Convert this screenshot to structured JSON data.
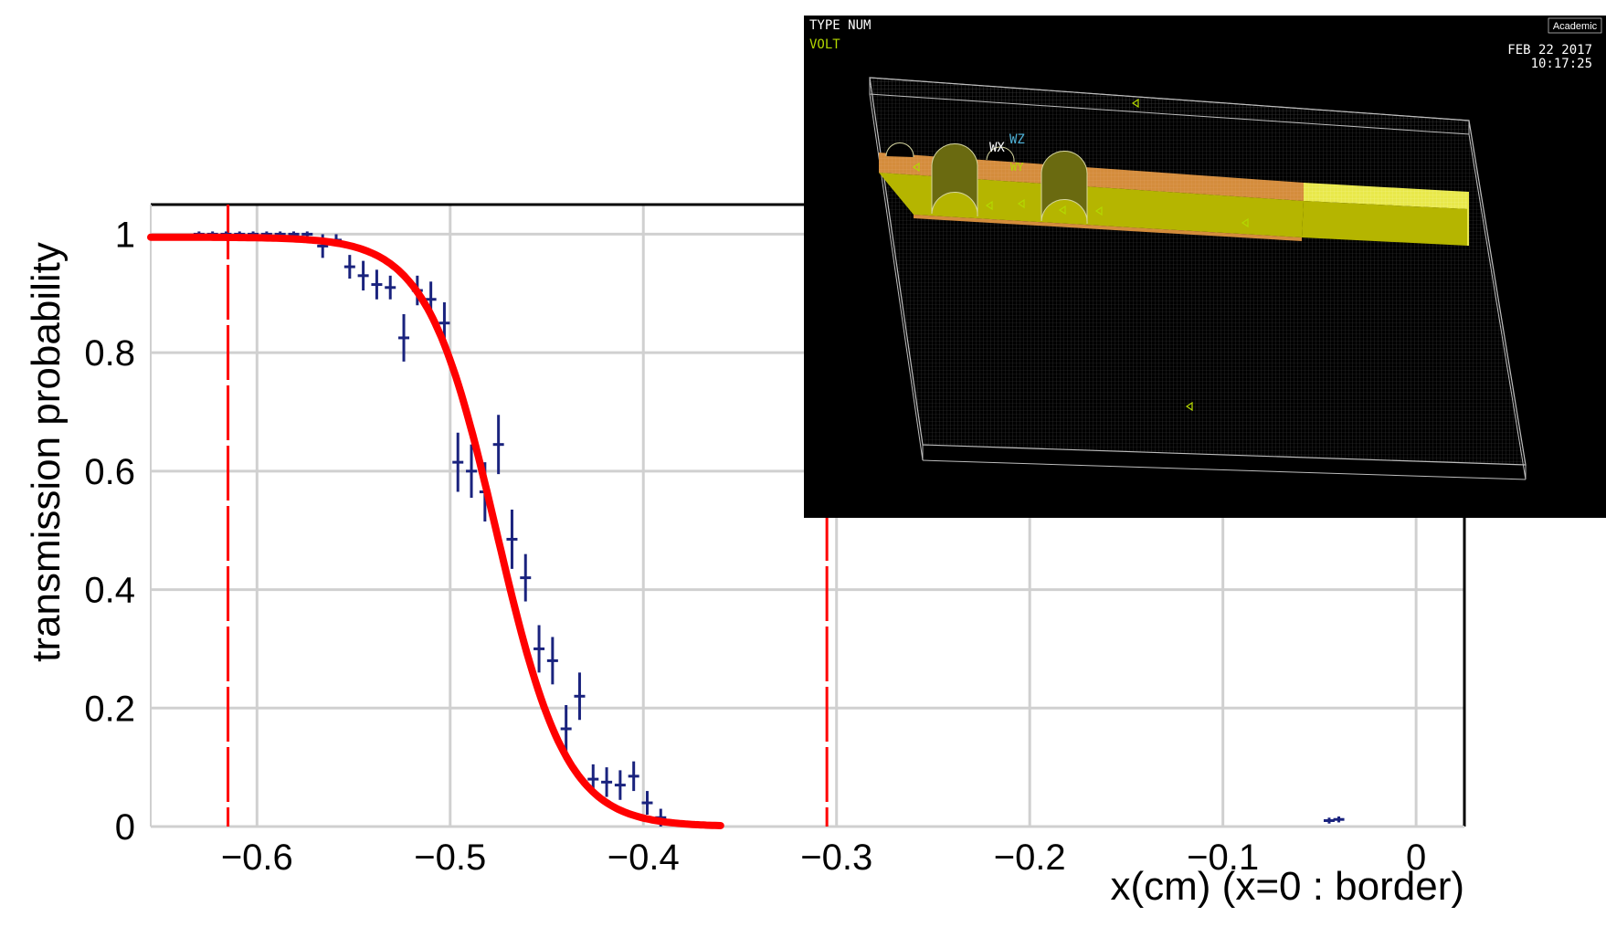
{
  "chart_data": {
    "type": "scatter",
    "title": "",
    "xlabel": "x(cm) (x=0 : border)",
    "ylabel": "transmission probability",
    "xlim": [
      -0.655,
      0.025
    ],
    "ylim": [
      0,
      1.05
    ],
    "xticks": [
      -0.6,
      -0.5,
      -0.4,
      -0.3,
      -0.2,
      -0.1,
      0
    ],
    "xtick_labels": [
      "−0.6",
      "−0.5",
      "−0.4",
      "−0.3",
      "−0.2",
      "−0.1",
      "0"
    ],
    "yticks": [
      0,
      0.2,
      0.4,
      0.6,
      0.8,
      1
    ],
    "ytick_labels": [
      "0",
      "0.2",
      "0.4",
      "0.6",
      "0.8",
      "1"
    ],
    "grid": true,
    "series": [
      {
        "kind": "points_with_errors",
        "color": "#1a237e",
        "points": [
          {
            "x": -0.63,
            "y": 1.0,
            "ey": 0.003
          },
          {
            "x": -0.623,
            "y": 1.0,
            "ey": 0.003
          },
          {
            "x": -0.616,
            "y": 1.0,
            "ey": 0.003
          },
          {
            "x": -0.609,
            "y": 1.0,
            "ey": 0.003
          },
          {
            "x": -0.602,
            "y": 1.0,
            "ey": 0.003
          },
          {
            "x": -0.595,
            "y": 1.0,
            "ey": 0.003
          },
          {
            "x": -0.588,
            "y": 1.0,
            "ey": 0.003
          },
          {
            "x": -0.581,
            "y": 1.0,
            "ey": 0.003
          },
          {
            "x": -0.574,
            "y": 1.0,
            "ey": 0.003
          },
          {
            "x": -0.566,
            "y": 0.98,
            "ey": 0.02
          },
          {
            "x": -0.559,
            "y": 0.99,
            "ey": 0.01
          },
          {
            "x": -0.552,
            "y": 0.945,
            "ey": 0.02
          },
          {
            "x": -0.545,
            "y": 0.93,
            "ey": 0.025
          },
          {
            "x": -0.538,
            "y": 0.915,
            "ey": 0.025
          },
          {
            "x": -0.531,
            "y": 0.91,
            "ey": 0.02
          },
          {
            "x": -0.524,
            "y": 0.825,
            "ey": 0.04
          },
          {
            "x": -0.517,
            "y": 0.905,
            "ey": 0.025
          },
          {
            "x": -0.51,
            "y": 0.89,
            "ey": 0.03
          },
          {
            "x": -0.503,
            "y": 0.85,
            "ey": 0.035
          },
          {
            "x": -0.496,
            "y": 0.615,
            "ey": 0.05
          },
          {
            "x": -0.489,
            "y": 0.6,
            "ey": 0.045
          },
          {
            "x": -0.482,
            "y": 0.565,
            "ey": 0.05
          },
          {
            "x": -0.475,
            "y": 0.645,
            "ey": 0.05
          },
          {
            "x": -0.468,
            "y": 0.485,
            "ey": 0.05
          },
          {
            "x": -0.461,
            "y": 0.42,
            "ey": 0.04
          },
          {
            "x": -0.454,
            "y": 0.3,
            "ey": 0.04
          },
          {
            "x": -0.447,
            "y": 0.28,
            "ey": 0.04
          },
          {
            "x": -0.44,
            "y": 0.165,
            "ey": 0.04
          },
          {
            "x": -0.433,
            "y": 0.22,
            "ey": 0.04
          },
          {
            "x": -0.426,
            "y": 0.08,
            "ey": 0.025
          },
          {
            "x": -0.419,
            "y": 0.075,
            "ey": 0.025
          },
          {
            "x": -0.412,
            "y": 0.07,
            "ey": 0.025
          },
          {
            "x": -0.405,
            "y": 0.085,
            "ey": 0.025
          },
          {
            "x": -0.398,
            "y": 0.04,
            "ey": 0.02
          },
          {
            "x": -0.391,
            "y": 0.015,
            "ey": 0.015
          },
          {
            "x": -0.384,
            "y": 0.005,
            "ey": 0.005
          },
          {
            "x": -0.377,
            "y": 0.005,
            "ey": 0.005
          },
          {
            "x": -0.045,
            "y": 0.01,
            "ey": 0.005
          },
          {
            "x": -0.04,
            "y": 0.012,
            "ey": 0.005
          }
        ]
      },
      {
        "kind": "fit_curve",
        "color": "#ff0000",
        "function": "sigmoid",
        "center": -0.476,
        "width": 0.018,
        "amplitude": 0.995,
        "x_range": [
          -0.655,
          -0.36
        ]
      }
    ],
    "annotations": [
      {
        "kind": "vline_dashed",
        "x": -0.615,
        "color": "#ff0000"
      },
      {
        "kind": "vline_dashed",
        "x": -0.305,
        "color": "#ff0000"
      }
    ]
  },
  "inset": {
    "top_left_line1": "TYPE NUM",
    "top_left_line2": "VOLT",
    "top_right_badge": "Academic",
    "date": "FEB 22 2017",
    "time": "10:17:25",
    "axis_labels": [
      "WX",
      "WZ",
      "WY"
    ],
    "colors": {
      "background": "#000000",
      "outline": "#bdbdbd",
      "part_orange": "#d48c3c",
      "part_yellow": "#b5b500",
      "part_bright_yellow": "#e8e84a",
      "text_white": "#ffffff",
      "text_green": "#b4d800"
    }
  }
}
